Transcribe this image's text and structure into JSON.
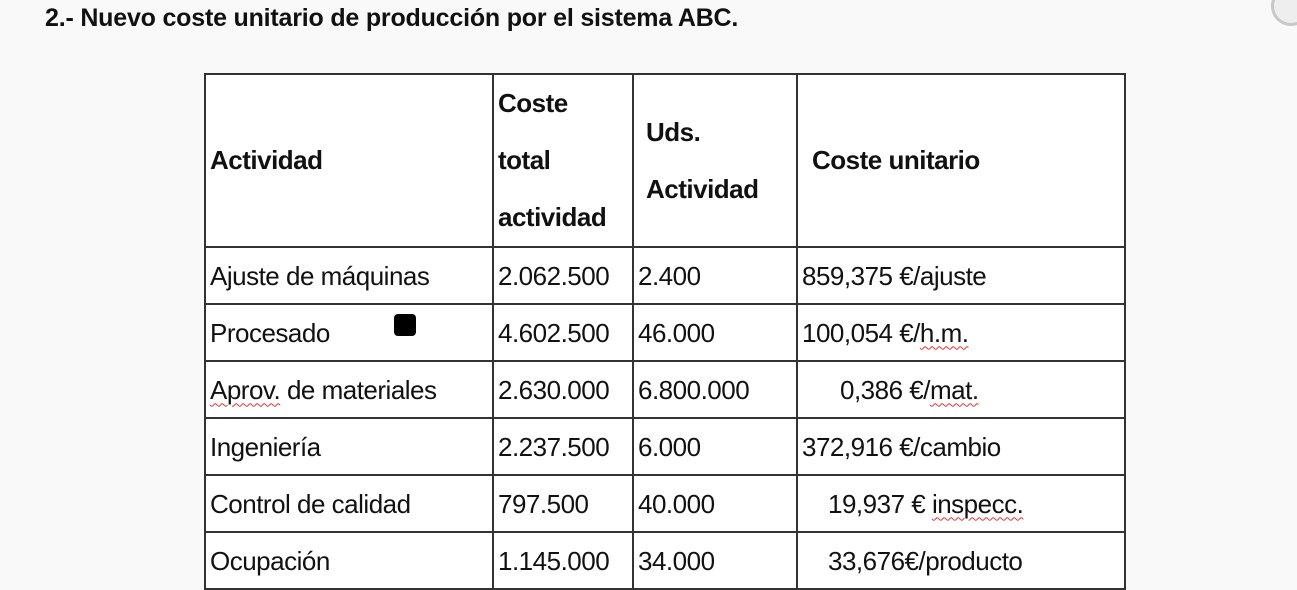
{
  "heading": "2.- Nuevo coste unitario de producción por el sistema ABC.",
  "table": {
    "headers": {
      "actividad": "Actividad",
      "coste_total": [
        "Coste",
        "total",
        "actividad"
      ],
      "uds": [
        "Uds.",
        "Actividad"
      ],
      "coste_unitario": "Coste unitario"
    },
    "rows": [
      {
        "actividad": "Ajuste de máquinas",
        "coste_total": "2.062.500",
        "uds": "2.400",
        "coste_unitario": "859,375 €/ajuste"
      },
      {
        "actividad": "Procesado",
        "coste_total": "4.602.500",
        "uds": "46.000",
        "coste_unitario_num": "100,054 €/",
        "coste_unitario_unit": "h.m."
      },
      {
        "actividad_pre": "Aprov.",
        "actividad_post": " de materiales",
        "coste_total": "2.630.000",
        "uds": "6.800.000",
        "coste_unitario_num": "0,386 €/",
        "coste_unitario_unit": "mat."
      },
      {
        "actividad": "Ingeniería",
        "coste_total": "2.237.500",
        "uds": "6.000",
        "coste_unitario": "372,916 €/cambio"
      },
      {
        "actividad": "Control de calidad",
        "coste_total": "797.500",
        "uds": "40.000",
        "coste_unitario_num": "19,937 € ",
        "coste_unitario_unit": "inspecc."
      },
      {
        "actividad": "Ocupación",
        "coste_total": "1.145.000",
        "uds": "34.000",
        "coste_unitario": "33,676€/producto"
      }
    ]
  }
}
